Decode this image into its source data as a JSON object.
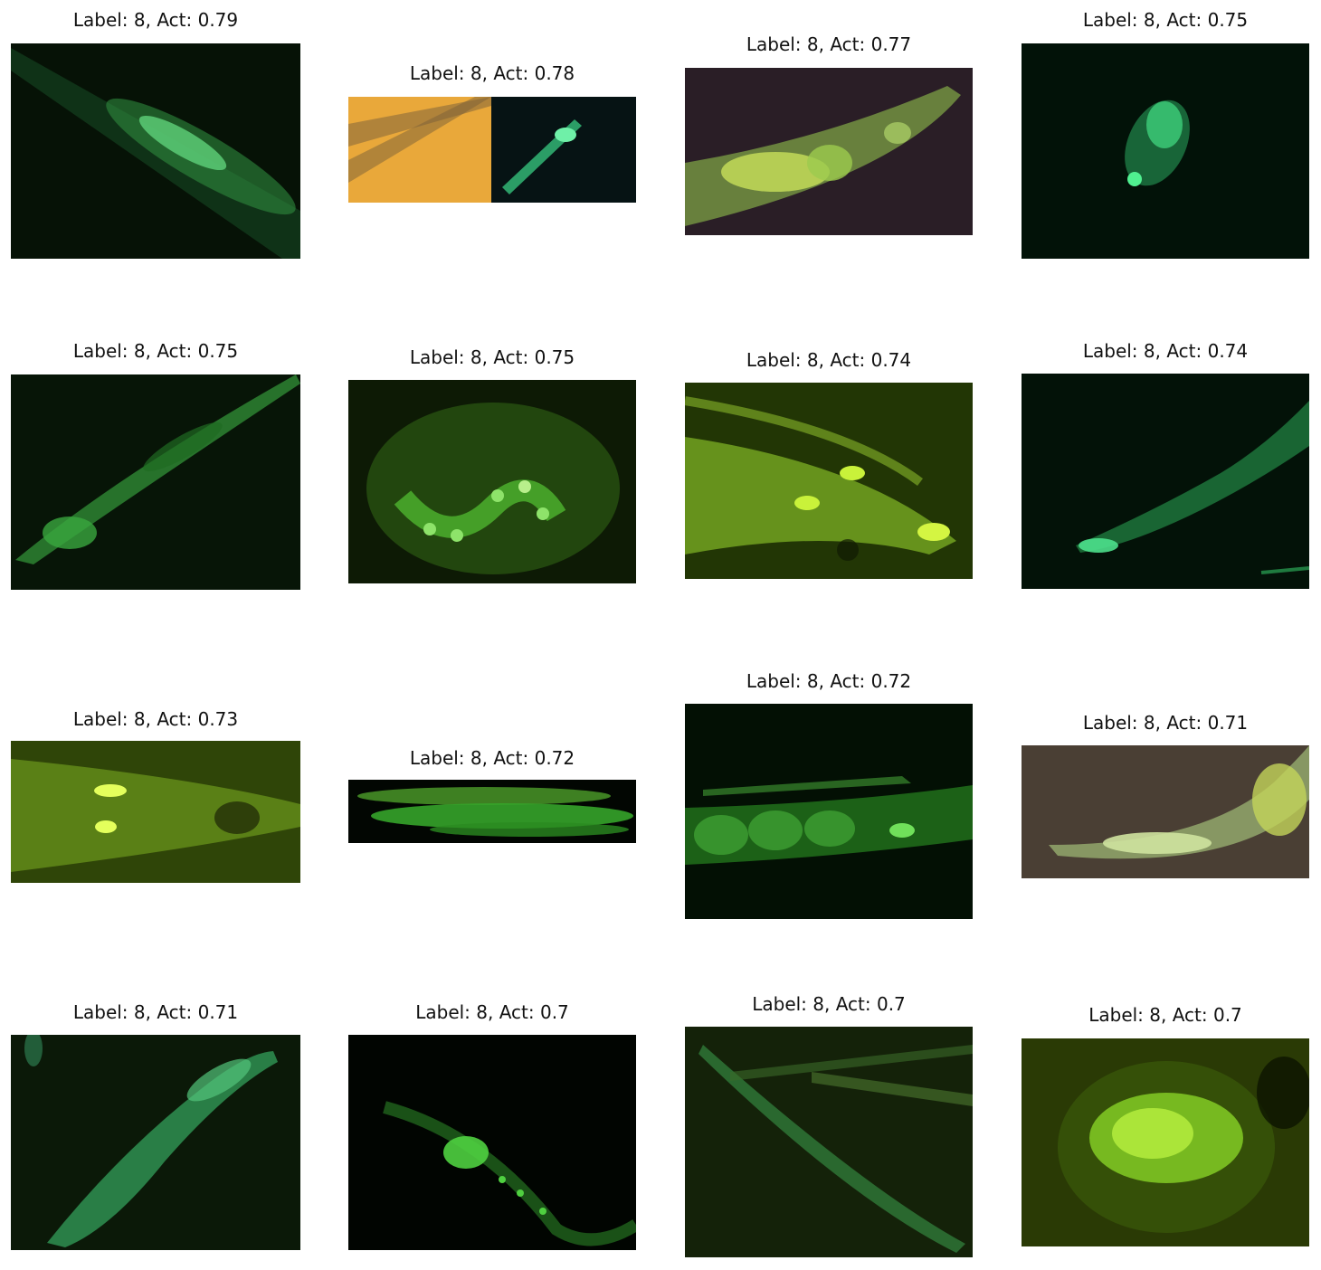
{
  "figure": {
    "panels": [
      {
        "title": "Label: 8, Act: 0.79"
      },
      {
        "title": "Label: 8, Act: 0.78"
      },
      {
        "title": "Label: 8, Act: 0.77"
      },
      {
        "title": "Label: 8, Act: 0.75"
      },
      {
        "title": "Label: 8, Act: 0.75"
      },
      {
        "title": "Label: 8, Act: 0.75"
      },
      {
        "title": "Label: 8, Act: 0.74"
      },
      {
        "title": "Label: 8, Act: 0.74"
      },
      {
        "title": "Label: 8, Act: 0.73"
      },
      {
        "title": "Label: 8, Act: 0.72"
      },
      {
        "title": "Label: 8, Act: 0.72"
      },
      {
        "title": "Label: 8, Act: 0.71"
      },
      {
        "title": "Label: 8, Act: 0.71"
      },
      {
        "title": "Label: 8, Act: 0.7"
      },
      {
        "title": "Label: 8, Act: 0.7"
      },
      {
        "title": "Label: 8, Act: 0.7"
      }
    ]
  }
}
